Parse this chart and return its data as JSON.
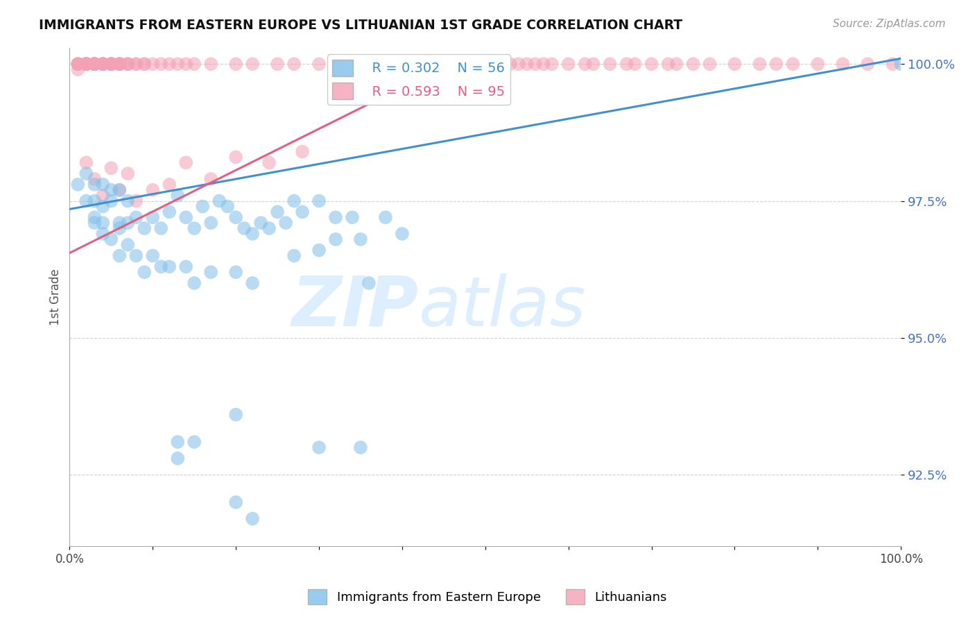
{
  "title": "IMMIGRANTS FROM EASTERN EUROPE VS LITHUANIAN 1ST GRADE CORRELATION CHART",
  "source_text": "Source: ZipAtlas.com",
  "ylabel": "1st Grade",
  "legend_label_blue": "Immigrants from Eastern Europe",
  "legend_label_pink": "Lithuanians",
  "R_blue": 0.302,
  "N_blue": 56,
  "R_pink": 0.593,
  "N_pink": 95,
  "blue_color": "#7fbfea",
  "pink_color": "#f4a0b5",
  "line_blue": "#4090d0",
  "line_pink": "#e06080",
  "watermark_top": "ZIP",
  "watermark_bot": "atlas",
  "watermark_color": "#ddeeff",
  "xlim": [
    0.0,
    1.0
  ],
  "ylim": [
    0.912,
    1.003
  ],
  "yticks": [
    1.0,
    0.975,
    0.95,
    0.925
  ],
  "ytick_labels": [
    "100.0%",
    "97.5%",
    "95.0%",
    "92.5%"
  ],
  "blue_trend_x": [
    0.0,
    1.0
  ],
  "blue_trend_y": [
    0.9735,
    1.001
  ],
  "pink_trend_x": [
    0.0,
    0.45
  ],
  "pink_trend_y": [
    0.9655,
    0.9995
  ],
  "blue_x": [
    0.01,
    0.02,
    0.02,
    0.03,
    0.03,
    0.03,
    0.04,
    0.04,
    0.04,
    0.05,
    0.05,
    0.06,
    0.06,
    0.07,
    0.07,
    0.08,
    0.09,
    0.1,
    0.11,
    0.12,
    0.13,
    0.14,
    0.15,
    0.16,
    0.17,
    0.18,
    0.19,
    0.2,
    0.21,
    0.22,
    0.23,
    0.24,
    0.25,
    0.26,
    0.27,
    0.28,
    0.3,
    0.32,
    0.34,
    0.36,
    0.38,
    0.4,
    1.0
  ],
  "blue_y": [
    0.978,
    0.98,
    0.975,
    0.978,
    0.975,
    0.972,
    0.978,
    0.974,
    0.971,
    0.977,
    0.975,
    0.977,
    0.971,
    0.975,
    0.971,
    0.972,
    0.97,
    0.972,
    0.97,
    0.973,
    0.976,
    0.972,
    0.97,
    0.974,
    0.971,
    0.975,
    0.974,
    0.972,
    0.97,
    0.969,
    0.971,
    0.97,
    0.973,
    0.971,
    0.975,
    0.973,
    0.975,
    0.972,
    0.972,
    0.96,
    0.972,
    0.969,
    1.0
  ],
  "blue_x2": [
    0.03,
    0.04,
    0.05,
    0.06,
    0.06,
    0.07,
    0.08,
    0.09,
    0.1,
    0.11,
    0.12,
    0.14,
    0.15,
    0.17,
    0.2,
    0.22,
    0.27,
    0.3,
    0.32,
    0.35,
    0.15,
    0.2
  ],
  "blue_y2": [
    0.971,
    0.969,
    0.968,
    0.97,
    0.965,
    0.967,
    0.965,
    0.962,
    0.965,
    0.963,
    0.963,
    0.963,
    0.96,
    0.962,
    0.962,
    0.96,
    0.965,
    0.966,
    0.968,
    0.968,
    0.931,
    0.936
  ],
  "blue_low_x": [
    0.13,
    0.13,
    0.2,
    0.22,
    0.3,
    0.35
  ],
  "blue_low_y": [
    0.931,
    0.928,
    0.92,
    0.917,
    0.93,
    0.93
  ],
  "pink_x": [
    0.01,
    0.01,
    0.01,
    0.01,
    0.01,
    0.02,
    0.02,
    0.02,
    0.02,
    0.02,
    0.02,
    0.02,
    0.02,
    0.02,
    0.03,
    0.03,
    0.03,
    0.03,
    0.03,
    0.03,
    0.03,
    0.03,
    0.04,
    0.04,
    0.04,
    0.04,
    0.04,
    0.04,
    0.04,
    0.05,
    0.05,
    0.05,
    0.05,
    0.05,
    0.05,
    0.06,
    0.06,
    0.06,
    0.06,
    0.06,
    0.07,
    0.07,
    0.07,
    0.08,
    0.08,
    0.09,
    0.09,
    0.1,
    0.11,
    0.12,
    0.13,
    0.14,
    0.15,
    0.17,
    0.2,
    0.22,
    0.25,
    0.27,
    0.3,
    0.33,
    0.36,
    0.4,
    0.43,
    0.45,
    0.47,
    0.48,
    0.49,
    0.5,
    0.51,
    0.52,
    0.53,
    0.54,
    0.55,
    0.56,
    0.57,
    0.58,
    0.6,
    0.62,
    0.63,
    0.65,
    0.67,
    0.68,
    0.7,
    0.72,
    0.73,
    0.75,
    0.77,
    0.8,
    0.83,
    0.85,
    0.87,
    0.9,
    0.93,
    0.96,
    0.99
  ],
  "pink_y": [
    0.999,
    1.0,
    1.0,
    1.0,
    1.0,
    1.0,
    1.0,
    1.0,
    1.0,
    1.0,
    1.0,
    1.0,
    1.0,
    1.0,
    1.0,
    1.0,
    1.0,
    1.0,
    1.0,
    1.0,
    1.0,
    1.0,
    1.0,
    1.0,
    1.0,
    1.0,
    1.0,
    1.0,
    1.0,
    1.0,
    1.0,
    1.0,
    1.0,
    1.0,
    1.0,
    1.0,
    1.0,
    1.0,
    1.0,
    1.0,
    1.0,
    1.0,
    1.0,
    1.0,
    1.0,
    1.0,
    1.0,
    1.0,
    1.0,
    1.0,
    1.0,
    1.0,
    1.0,
    1.0,
    1.0,
    1.0,
    1.0,
    1.0,
    1.0,
    1.0,
    1.0,
    1.0,
    1.0,
    1.0,
    1.0,
    1.0,
    1.0,
    1.0,
    1.0,
    1.0,
    1.0,
    1.0,
    1.0,
    1.0,
    1.0,
    1.0,
    1.0,
    1.0,
    1.0,
    1.0,
    1.0,
    1.0,
    1.0,
    1.0,
    1.0,
    1.0,
    1.0,
    1.0,
    1.0,
    1.0,
    1.0,
    1.0,
    1.0,
    1.0,
    1.0
  ],
  "pink_scatter_x": [
    0.02,
    0.03,
    0.04,
    0.05,
    0.06,
    0.07,
    0.08,
    0.1,
    0.12,
    0.14,
    0.17,
    0.2,
    0.24,
    0.28
  ],
  "pink_scatter_y": [
    0.982,
    0.979,
    0.976,
    0.981,
    0.977,
    0.98,
    0.975,
    0.977,
    0.978,
    0.982,
    0.979,
    0.983,
    0.982,
    0.984
  ]
}
